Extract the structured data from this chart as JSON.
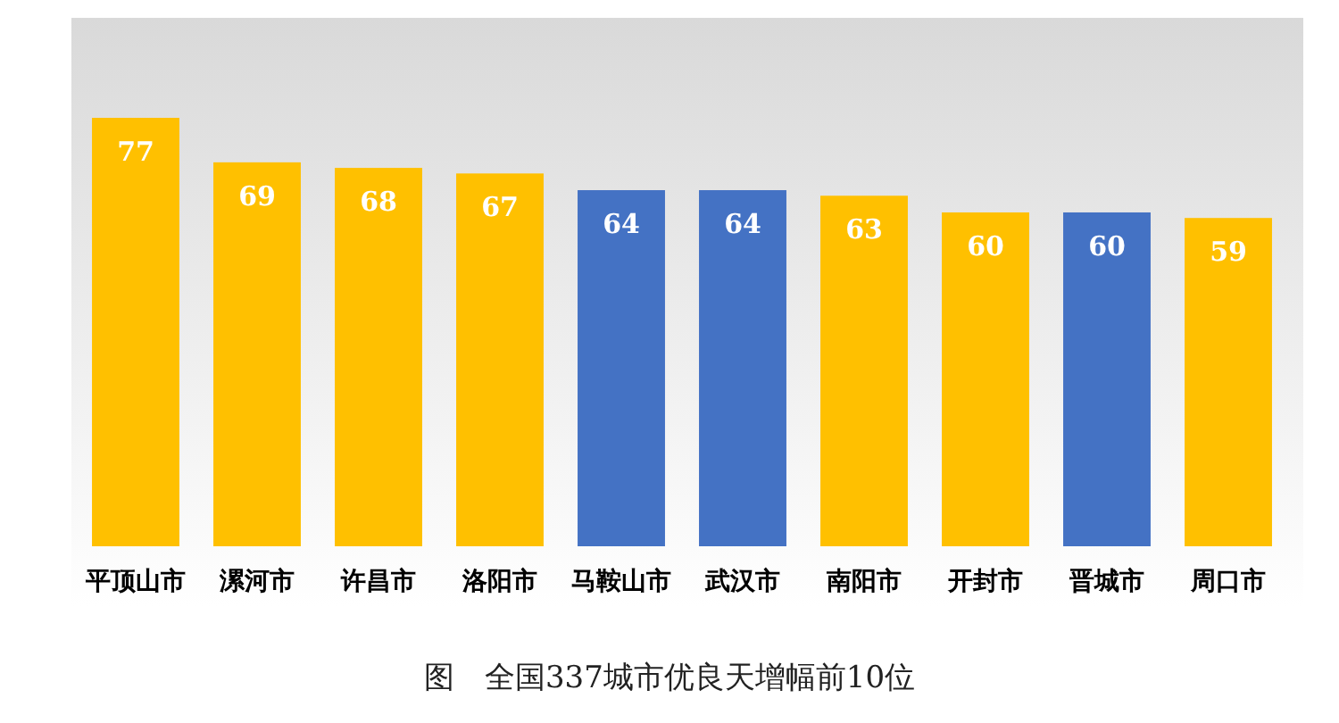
{
  "chart_data": {
    "type": "bar",
    "title": "图　全国337城市优良天增幅前10位",
    "categories": [
      "平顶山市",
      "漯河市",
      "许昌市",
      "洛阳市",
      "马鞍山市",
      "武汉市",
      "南阳市",
      "开封市",
      "晋城市",
      "周口市"
    ],
    "values": [
      77,
      69,
      68,
      67,
      64,
      64,
      63,
      60,
      60,
      59
    ],
    "colors": [
      "#ffc000",
      "#ffc000",
      "#ffc000",
      "#ffc000",
      "#4472c4",
      "#4472c4",
      "#ffc000",
      "#ffc000",
      "#4472c4",
      "#ffc000"
    ],
    "data_labels": true
  }
}
